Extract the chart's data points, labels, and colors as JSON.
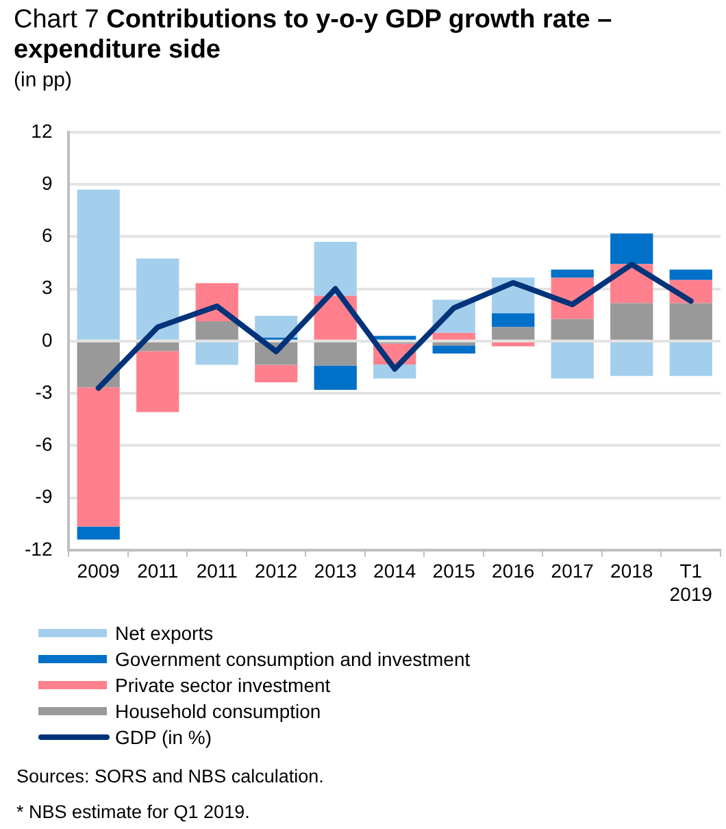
{
  "chart_data": {
    "type": "bar",
    "stacked": true,
    "title": "Chart 7 Contributions to y-o-y GDP growth rate – expenditure side",
    "ylabel": "(in pp)",
    "categories": [
      "2009",
      "2011",
      "2011",
      "2012",
      "2013",
      "2014",
      "2015",
      "2016",
      "2017",
      "2018",
      "T1 2019"
    ],
    "series": [
      {
        "name": "Household consumption",
        "color": "#999999",
        "values": [
          -2.65,
          -0.58,
          1.13,
          -1.37,
          -1.4,
          -0.15,
          -0.25,
          0.8,
          1.26,
          2.18,
          2.18
        ]
      },
      {
        "name": "Private sector investment",
        "color": "#ff808c",
        "values": [
          -8.0,
          -3.5,
          2.2,
          -1.0,
          2.6,
          -1.2,
          0.47,
          -0.3,
          2.37,
          2.24,
          1.32
        ]
      },
      {
        "name": "Government consumption and investment",
        "color": "#0070c8",
        "values": [
          -0.75,
          0,
          0,
          0.2,
          -1.4,
          0.3,
          -0.47,
          0.8,
          0.47,
          1.76,
          0.6
        ]
      },
      {
        "name": "Net exports",
        "color": "#a4cfec",
        "values": [
          8.7,
          4.74,
          -1.37,
          1.25,
          3.1,
          -0.8,
          1.9,
          2.05,
          -2.15,
          -2.0,
          -2.0
        ]
      },
      {
        "name": "GDP (in %)",
        "type": "line",
        "color": "#00337a",
        "values": [
          -2.7,
          0.8,
          2.0,
          -0.6,
          3.0,
          -1.6,
          1.9,
          3.35,
          2.1,
          4.4,
          2.3
        ]
      }
    ],
    "ylim": [
      -12,
      12
    ],
    "yticks": [
      -12,
      -9,
      -6,
      -3,
      0,
      3,
      6,
      9,
      12
    ],
    "grid": "y",
    "legend": "bottom",
    "marker": "none",
    "annotations": [
      "Sources:  SORS and NBS calculation.",
      "* NBS estimate for Q1 2019."
    ]
  }
}
